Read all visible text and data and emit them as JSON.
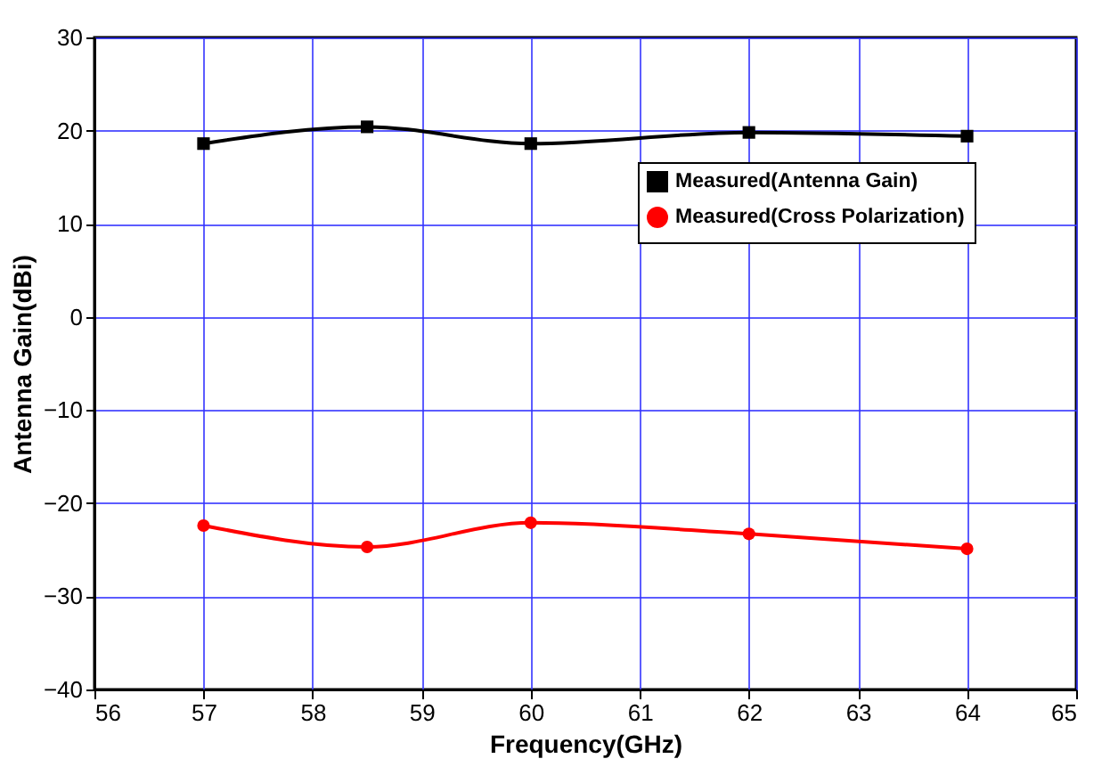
{
  "chart_data": {
    "type": "line",
    "xlabel": "Frequency(GHz)",
    "ylabel": "Antenna Gain(dBi)",
    "x": [
      57,
      58.5,
      60,
      62,
      64
    ],
    "series": [
      {
        "name": "Measured(Antenna Gain)",
        "color": "#000000",
        "values": [
          18.6,
          20.4,
          18.6,
          19.8,
          19.4
        ],
        "marker": "square"
      },
      {
        "name": "Measured(Cross Polarization)",
        "color": "#ff0000",
        "values": [
          -22.4,
          -24.7,
          -22.1,
          -23.3,
          -24.9
        ],
        "marker": "circle"
      }
    ],
    "xlim": [
      56,
      65
    ],
    "xticks": [
      56,
      57,
      58,
      59,
      60,
      61,
      62,
      63,
      64,
      65
    ],
    "ylim": [
      -40,
      30
    ],
    "yticks": [
      -40,
      -30,
      -20,
      -10,
      0,
      10,
      20,
      30
    ],
    "grid": true,
    "legend": "top right",
    "line_style": "solid"
  }
}
